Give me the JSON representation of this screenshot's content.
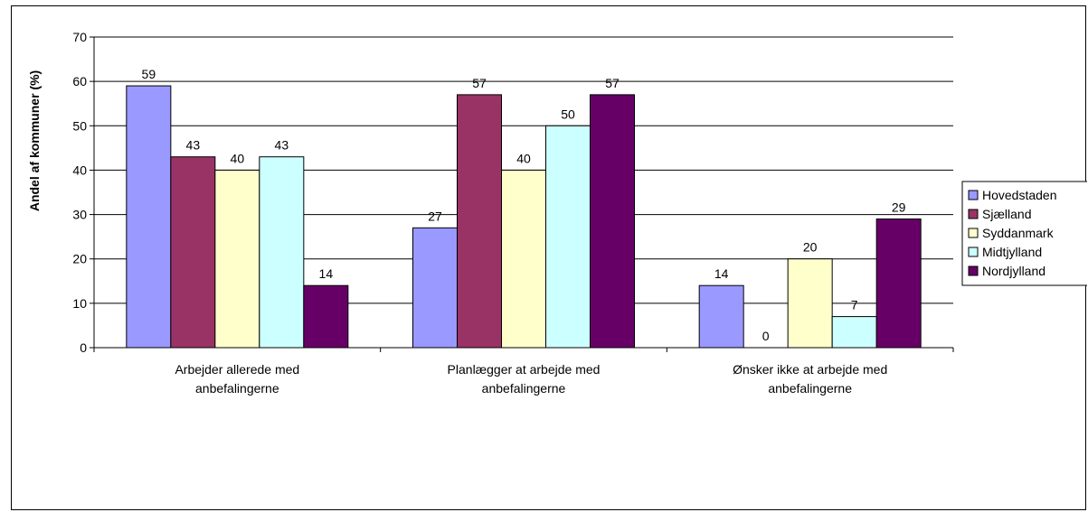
{
  "chart_data": {
    "type": "bar",
    "title": "",
    "xlabel": "",
    "ylabel": "Andel af kommuner (%)",
    "ylim": [
      0,
      70
    ],
    "yticks": [
      0,
      10,
      20,
      30,
      40,
      50,
      60,
      70
    ],
    "grid": true,
    "legend_position": "right",
    "categories": [
      [
        "Arbejder allerede med",
        "anbefalingerne"
      ],
      [
        "Planlægger at arbejde med",
        "anbefalingerne"
      ],
      [
        "Ønsker ikke at arbejde med",
        "anbefalingerne"
      ]
    ],
    "series": [
      {
        "name": "Hovedstaden",
        "color": "#9999ff",
        "values": [
          59,
          27,
          14
        ]
      },
      {
        "name": "Sjælland",
        "color": "#993366",
        "values": [
          43,
          57,
          0
        ]
      },
      {
        "name": "Syddanmark",
        "color": "#ffffcc",
        "values": [
          40,
          40,
          20
        ]
      },
      {
        "name": "Midtjylland",
        "color": "#ccffff",
        "values": [
          43,
          50,
          7
        ]
      },
      {
        "name": "Nordjylland",
        "color": "#660066",
        "values": [
          14,
          57,
          29
        ]
      }
    ]
  }
}
